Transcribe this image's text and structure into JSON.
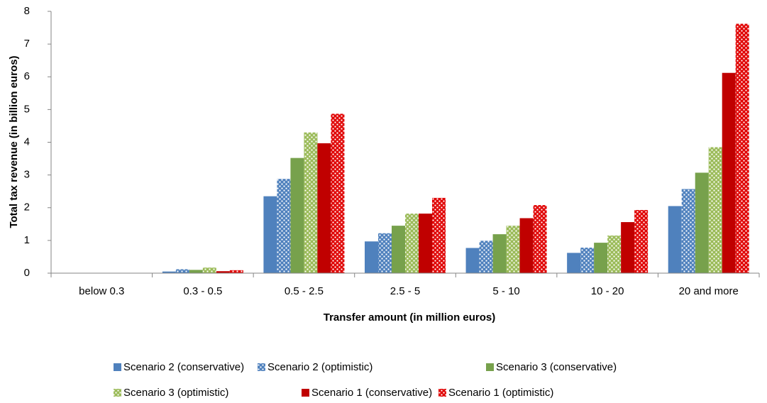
{
  "chart_data": {
    "type": "bar",
    "x_label": "Transfer amount (in million euros)",
    "y_label": "Total tax revenue (in billion euros)",
    "categories": [
      "below 0.3",
      "0.3 - 0.5",
      "0.5 - 2.5",
      "2.5 - 5",
      "5 - 10",
      "10 - 20",
      "20 and more"
    ],
    "series": [
      {
        "name": "Scenario 2 (conservative)",
        "color": "#4f81bd",
        "pattern": "solid",
        "values": [
          0,
          0.05,
          2.35,
          0.97,
          0.77,
          0.62,
          2.05
        ]
      },
      {
        "name": "Scenario 2 (optimistic)",
        "color": "#4f81bd",
        "pattern": "dots",
        "values": [
          0,
          0.12,
          2.88,
          1.22,
          0.99,
          0.78,
          2.57
        ]
      },
      {
        "name": "Scenario 3 (conservative)",
        "color": "#77a14c",
        "pattern": "solid",
        "values": [
          0,
          0.1,
          3.52,
          1.45,
          1.19,
          0.93,
          3.07
        ]
      },
      {
        "name": "Scenario 3 (optimistic)",
        "color": "#9bbb59",
        "pattern": "dots",
        "values": [
          0,
          0.17,
          4.3,
          1.82,
          1.45,
          1.15,
          3.85
        ]
      },
      {
        "name": "Scenario 1 (conservative)",
        "color": "#c00000",
        "pattern": "solid",
        "values": [
          0,
          0.06,
          3.97,
          1.82,
          1.68,
          1.56,
          6.12
        ]
      },
      {
        "name": "Scenario 1 (optimistic)",
        "color": "#e00000",
        "pattern": "dots",
        "values": [
          0,
          0.09,
          4.87,
          2.3,
          2.08,
          1.93,
          7.62
        ]
      }
    ],
    "ylim": [
      0,
      8
    ],
    "yticks": [
      0,
      1,
      2,
      3,
      4,
      5,
      6,
      7,
      8
    ],
    "grid": false,
    "legend": "bottom"
  }
}
